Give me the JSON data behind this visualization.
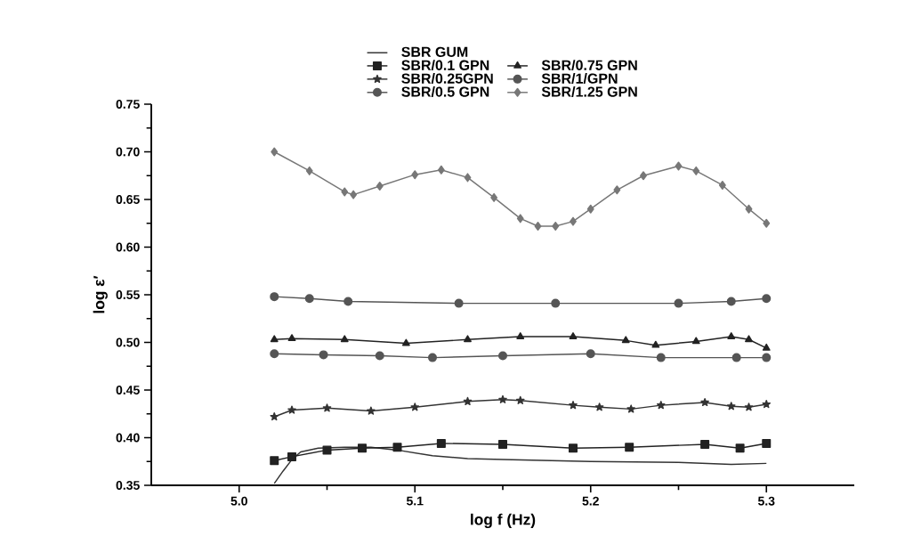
{
  "chart_data": {
    "type": "line",
    "xlabel": "log f (Hz)",
    "ylabel": "log ε′",
    "xlim": [
      4.95,
      5.35
    ],
    "ylim": [
      0.35,
      0.75
    ],
    "xticks": [
      {
        "value": 5.0,
        "label": "5.0"
      },
      {
        "value": 5.1,
        "label": "5.1"
      },
      {
        "value": 5.2,
        "label": "5.2"
      },
      {
        "value": 5.3,
        "label": "5.3"
      }
    ],
    "yticks": [
      {
        "value": 0.35,
        "label": "0.35"
      },
      {
        "value": 0.4,
        "label": "0.40"
      },
      {
        "value": 0.45,
        "label": "0.45"
      },
      {
        "value": 0.5,
        "label": "0.50"
      },
      {
        "value": 0.55,
        "label": "0.55"
      },
      {
        "value": 0.6,
        "label": "0.60"
      },
      {
        "value": 0.65,
        "label": "0.65"
      },
      {
        "value": 0.7,
        "label": "0.70"
      },
      {
        "value": 0.75,
        "label": "0.75"
      }
    ],
    "grid": false,
    "legend": "top",
    "line_style": "solid",
    "series": [
      {
        "name": "SBR GUM",
        "color": "#333333",
        "marker": "none",
        "x": [
          5.02,
          5.025,
          5.03,
          5.035,
          5.045,
          5.06,
          5.075,
          5.09,
          5.1,
          5.11,
          5.13,
          5.15,
          5.2,
          5.25,
          5.28,
          5.3
        ],
        "values": [
          0.352,
          0.365,
          0.377,
          0.385,
          0.389,
          0.39,
          0.39,
          0.387,
          0.384,
          0.381,
          0.378,
          0.377,
          0.375,
          0.374,
          0.372,
          0.373
        ]
      },
      {
        "name": "SBR/0.1 GPN",
        "color": "#222222",
        "marker": "square",
        "x": [
          5.02,
          5.03,
          5.05,
          5.07,
          5.09,
          5.115,
          5.15,
          5.19,
          5.222,
          5.265,
          5.285,
          5.3
        ],
        "values": [
          0.376,
          0.38,
          0.387,
          0.389,
          0.39,
          0.394,
          0.393,
          0.389,
          0.39,
          0.393,
          0.389,
          0.394
        ]
      },
      {
        "name": "SBR/0.75 GPN",
        "color": "#222222",
        "marker": "triangle",
        "x": [
          5.02,
          5.03,
          5.06,
          5.095,
          5.13,
          5.16,
          5.19,
          5.22,
          5.237,
          5.26,
          5.28,
          5.29,
          5.3
        ],
        "values": [
          0.503,
          0.504,
          0.503,
          0.499,
          0.503,
          0.506,
          0.506,
          0.502,
          0.497,
          0.501,
          0.506,
          0.503,
          0.494
        ]
      },
      {
        "name": "SBR/0.25GPN",
        "color": "#333333",
        "marker": "star",
        "x": [
          5.02,
          5.03,
          5.05,
          5.075,
          5.1,
          5.13,
          5.15,
          5.16,
          5.19,
          5.205,
          5.223,
          5.24,
          5.265,
          5.28,
          5.29,
          5.3
        ],
        "values": [
          0.422,
          0.429,
          0.431,
          0.428,
          0.432,
          0.438,
          0.44,
          0.439,
          0.434,
          0.432,
          0.43,
          0.434,
          0.437,
          0.433,
          0.432,
          0.435
        ]
      },
      {
        "name": "SBR/1/GPN",
        "color": "#555555",
        "marker": "circle",
        "x": [
          5.02,
          5.04,
          5.062,
          5.125,
          5.18,
          5.25,
          5.28,
          5.3
        ],
        "values": [
          0.548,
          0.546,
          0.543,
          0.541,
          0.541,
          0.541,
          0.543,
          0.546
        ]
      },
      {
        "name": "SBR/0.5 GPN",
        "color": "#555555",
        "marker": "circle",
        "x": [
          5.02,
          5.048,
          5.08,
          5.11,
          5.15,
          5.2,
          5.24,
          5.283,
          5.3
        ],
        "values": [
          0.488,
          0.487,
          0.486,
          0.484,
          0.486,
          0.488,
          0.484,
          0.484,
          0.484
        ]
      },
      {
        "name": "SBR/1.25 GPN",
        "color": "#777777",
        "marker": "diamond",
        "x": [
          5.02,
          5.04,
          5.06,
          5.065,
          5.08,
          5.1,
          5.115,
          5.13,
          5.145,
          5.16,
          5.17,
          5.18,
          5.19,
          5.2,
          5.215,
          5.23,
          5.25,
          5.26,
          5.275,
          5.29,
          5.3
        ],
        "values": [
          0.7,
          0.68,
          0.658,
          0.655,
          0.664,
          0.676,
          0.681,
          0.673,
          0.652,
          0.63,
          0.622,
          0.622,
          0.627,
          0.64,
          0.66,
          0.675,
          0.685,
          0.68,
          0.665,
          0.64,
          0.625
        ]
      }
    ]
  }
}
